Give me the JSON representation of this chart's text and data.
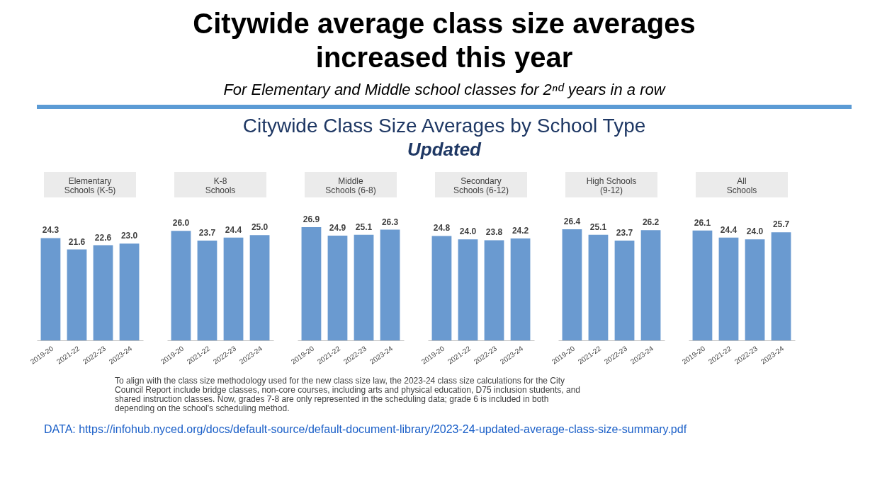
{
  "chart_data": [
    {
      "type": "other",
      "title": "Citywide average class size averages\nincreased this year",
      "subtitle": "For Elementary and Middle school classes for 2ⁿᵈ years in a row",
      "annotations": [
        "Citywide Class Size Averages by School Type",
        "Updated"
      ]
    },
    {
      "type": "bar",
      "title": "Elementary\nSchools (K-5)",
      "categories": [
        "2019-20",
        "2021-22",
        "2022-23",
        "2023-24"
      ],
      "values": [
        24.3,
        21.6,
        22.6,
        23.0
      ],
      "color": "#6a9ad0",
      "value_labels": [
        "24.3",
        "21.6",
        "22.6",
        "23.0"
      ]
    },
    {
      "type": "bar",
      "title": "K-8\nSchools",
      "categories": [
        "2019-20",
        "2021-22",
        "2022-23",
        "2023-24"
      ],
      "values": [
        26.0,
        23.7,
        24.4,
        25.0
      ],
      "color": "#6a9ad0",
      "value_labels": [
        "26.0",
        "23.7",
        "24.4",
        "25.0"
      ]
    },
    {
      "type": "bar",
      "title": "Middle\nSchools (6-8)",
      "categories": [
        "2019-20",
        "2021-22",
        "2022-23",
        "2023-24"
      ],
      "values": [
        26.9,
        24.9,
        25.1,
        26.3
      ],
      "color": "#6a9ad0",
      "value_labels": [
        "26.9",
        "24.9",
        "25.1",
        "26.3"
      ]
    },
    {
      "type": "bar",
      "title": "Secondary\nSchools (6-12)",
      "categories": [
        "2019-20",
        "2021-22",
        "2022-23",
        "2023-24"
      ],
      "values": [
        24.8,
        24.0,
        23.8,
        24.2
      ],
      "color": "#6a9ad0",
      "value_labels": [
        "24.8",
        "24.0",
        "23.8",
        "24.2"
      ]
    },
    {
      "type": "bar",
      "title": "High Schools\n(9-12)",
      "categories": [
        "2019-20",
        "2021-22",
        "2022-23",
        "2023-24"
      ],
      "values": [
        26.4,
        25.1,
        23.7,
        26.2
      ],
      "color": "#6a9ad0",
      "value_labels": [
        "26.4",
        "25.1",
        "23.7",
        "26.2"
      ]
    },
    {
      "type": "bar",
      "title": "All\nSchools",
      "categories": [
        "2019-20",
        "2021-22",
        "2022-23",
        "2023-24"
      ],
      "values": [
        26.1,
        24.4,
        24.0,
        25.7
      ],
      "color": "#6a9ad0",
      "value_labels": [
        "26.1",
        "24.4",
        "24.0",
        "25.7"
      ]
    },
    {
      "type": "other",
      "annotations": [
        "To align with the class size methodology used for the new class size law, the 2023-24 class size calculations for the City\nCouncil Report include bridge classes, non-core courses, including arts and physical education, D75 inclusion students, and\nshared instruction classes. Now, grades 7-8 are only represented in the scheduling data; grade 6 is included in both\ndepending on the school's scheduling method.",
        "DATA: https://infohub.nyced.org/docs/default-source/default-document-library/2023-24-updated-average-class-size-summary.pdf"
      ]
    }
  ]
}
